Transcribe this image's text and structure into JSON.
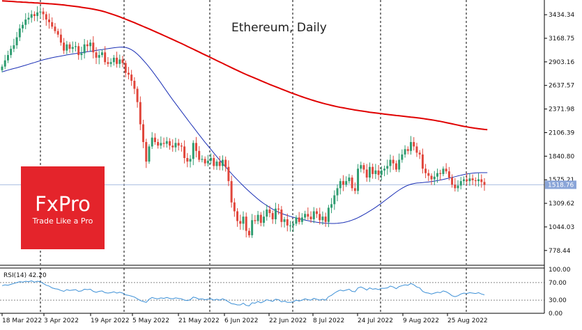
{
  "title": "Ethereum, Daily",
  "brand": {
    "name": "FxPro",
    "tagline": "Trade Like a Pro",
    "color": "#e4242b"
  },
  "colors": {
    "bull": "#2e9c70",
    "bear": "#e0453a",
    "ma_slow": "#e00000",
    "ma_fast": "#1a2fb5",
    "rsi": "#3b8fd6",
    "grid": "#000000",
    "price_line": "#a8bde0",
    "price_tag": "#8aa5d8"
  },
  "chart_data": [
    {
      "type": "candlestick",
      "title": "Ethereum, Daily",
      "y_ticks": [
        "3434.34",
        "3168.75",
        "2903.16",
        "2637.57",
        "2371.98",
        "2106.39",
        "1840.80",
        "1575.21",
        "1309.62",
        "1044.03",
        "778.44"
      ],
      "x_ticks": [
        "18 Mar 2022",
        "3 Apr 2022",
        "19 Apr 2022",
        "5 May 2022",
        "21 May 2022",
        "6 Jun 2022",
        "22 Jun 2022",
        "8 Jul 2022",
        "24 Jul 2022",
        "9 Aug 2022",
        "25 Aug 2022"
      ],
      "ylim": [
        620,
        3600
      ],
      "current_price": "1518.76",
      "current_value": 1518.76,
      "closes": [
        2850,
        2920,
        2980,
        3050,
        3090,
        3180,
        3280,
        3320,
        3380,
        3400,
        3440,
        3420,
        3460,
        3470,
        3440,
        3380,
        3350,
        3300,
        3250,
        3210,
        3120,
        3030,
        3100,
        3050,
        3070,
        3080,
        2980,
        3000,
        3100,
        3080,
        3120,
        3010,
        2950,
        2980,
        3010,
        2900,
        2880,
        2900,
        2950,
        2880,
        2930,
        2890,
        2780,
        2760,
        2690,
        2600,
        2450,
        2200,
        2000,
        1780,
        1950,
        2050,
        2000,
        1960,
        1990,
        1980,
        2010,
        1960,
        1940,
        1990,
        1960,
        1950,
        1820,
        1780,
        1810,
        1990,
        1900,
        1800,
        1810,
        1760,
        1790,
        1820,
        1730,
        1780,
        1730,
        1800,
        1720,
        1560,
        1320,
        1220,
        1110,
        1080,
        1160,
        1000,
        950,
        1120,
        1110,
        1180,
        1090,
        1160,
        1240,
        1200,
        1130,
        1250,
        1240,
        1100,
        1130,
        1060,
        1060,
        1080,
        1150,
        1100,
        1150,
        1190,
        1160,
        1130,
        1220,
        1190,
        1120,
        1160,
        1100,
        1260,
        1300,
        1400,
        1480,
        1560,
        1520,
        1560,
        1600,
        1480,
        1450,
        1700,
        1740,
        1690,
        1600,
        1720,
        1640,
        1680,
        1630,
        1680,
        1700,
        1730,
        1800,
        1760,
        1690,
        1800,
        1860,
        1920,
        1900,
        2000,
        1950,
        1880,
        1860,
        1700,
        1650,
        1620,
        1580,
        1610,
        1650,
        1640,
        1700,
        1670,
        1600,
        1520,
        1480,
        1510,
        1560,
        1580,
        1560,
        1590,
        1570,
        1560,
        1580,
        1550,
        1518
      ],
      "ma_slow": [
        3590,
        3588,
        3586,
        3584,
        3582,
        3580,
        3578,
        3576,
        3574,
        3572,
        3570,
        3568,
        3566,
        3564,
        3562,
        3560,
        3558,
        3556,
        3553,
        3550,
        3547,
        3544,
        3540,
        3536,
        3532,
        3528,
        3523,
        3518,
        3513,
        3508,
        3503,
        3497,
        3490,
        3483,
        3475,
        3466,
        3456,
        3445,
        3434,
        3422,
        3410,
        3397,
        3384,
        3371,
        3358,
        3344,
        3330,
        3316,
        3302,
        3288,
        3274,
        3260,
        3245,
        3230,
        3215,
        3200,
        3185,
        3170,
        3155,
        3140,
        3125,
        3110,
        3094,
        3078,
        3062,
        3046,
        3030,
        3014,
        2998,
        2982,
        2966,
        2950,
        2934,
        2918,
        2902,
        2886,
        2870,
        2854,
        2838,
        2822,
        2806,
        2791,
        2776,
        2761,
        2747,
        2733,
        2719,
        2705,
        2691,
        2677,
        2663,
        2649,
        2636,
        2623,
        2610,
        2597,
        2584,
        2571,
        2558,
        2546,
        2534,
        2522,
        2510,
        2499,
        2488,
        2477,
        2467,
        2457,
        2447,
        2438,
        2429,
        2421,
        2413,
        2405,
        2398,
        2391,
        2385,
        2379,
        2373,
        2367,
        2361,
        2356,
        2351,
        2346,
        2341,
        2336,
        2331,
        2327,
        2323,
        2319,
        2315,
        2311,
        2307,
        2303,
        2299,
        2296,
        2292,
        2289,
        2285,
        2281,
        2278,
        2274,
        2270,
        2265,
        2260,
        2255,
        2250,
        2245,
        2239,
        2233,
        2226,
        2219,
        2212,
        2205,
        2198,
        2191,
        2184,
        2177,
        2171,
        2165,
        2160,
        2155,
        2150,
        2146,
        2142,
        2139
      ],
      "ma_fast": [
        2790,
        2800,
        2810,
        2820,
        2828,
        2836,
        2846,
        2856,
        2866,
        2876,
        2886,
        2896,
        2906,
        2916,
        2926,
        2934,
        2942,
        2950,
        2957,
        2963,
        2969,
        2975,
        2981,
        2987,
        2992,
        2997,
        3002,
        3007,
        3012,
        3017,
        3022,
        3027,
        3032,
        3037,
        3042,
        3047,
        3052,
        3057,
        3062,
        3066,
        3069,
        3070,
        3066,
        3056,
        3040,
        3018,
        2990,
        2958,
        2922,
        2884,
        2844,
        2802,
        2758,
        2712,
        2665,
        2617,
        2570,
        2523,
        2477,
        2432,
        2388,
        2344,
        2300,
        2256,
        2212,
        2168,
        2125,
        2082,
        2040,
        1998,
        1957,
        1916,
        1876,
        1836,
        1797,
        1758,
        1720,
        1682,
        1645,
        1609,
        1574,
        1540,
        1507,
        1475,
        1444,
        1414,
        1385,
        1357,
        1331,
        1307,
        1285,
        1264,
        1244,
        1226,
        1210,
        1196,
        1184,
        1173,
        1163,
        1153,
        1144,
        1136,
        1128,
        1121,
        1114,
        1108,
        1102,
        1097,
        1093,
        1089,
        1086,
        1084,
        1083,
        1083,
        1085,
        1088,
        1093,
        1100,
        1109,
        1120,
        1133,
        1148,
        1165,
        1183,
        1202,
        1222,
        1243,
        1265,
        1288,
        1312,
        1337,
        1362,
        1387,
        1412,
        1436,
        1459,
        1480,
        1498,
        1513,
        1525,
        1533,
        1538,
        1541,
        1544,
        1547,
        1550,
        1555,
        1560,
        1566,
        1572,
        1579,
        1586,
        1594,
        1602,
        1610,
        1618,
        1626,
        1633,
        1640,
        1645,
        1649,
        1652,
        1654,
        1655,
        1655,
        1655
      ]
    },
    {
      "type": "line",
      "title": "RSI(14) 42.20",
      "y_ticks": [
        "100.00",
        "70.00",
        "30.00",
        "0.00"
      ],
      "ylim": [
        0,
        100
      ],
      "levels": [
        70,
        30
      ],
      "series": [
        {
          "values": [
            63,
            65,
            64,
            66,
            68,
            70,
            72,
            71,
            73,
            72,
            74,
            71,
            73,
            72,
            68,
            64,
            62,
            58,
            56,
            55,
            52,
            50,
            54,
            52,
            53,
            54,
            50,
            51,
            55,
            54,
            55,
            50,
            48,
            50,
            51,
            47,
            46,
            47,
            49,
            46,
            48,
            46,
            42,
            41,
            39,
            37,
            33,
            29,
            27,
            25,
            32,
            36,
            34,
            33,
            35,
            34,
            36,
            34,
            33,
            35,
            34,
            33,
            30,
            29,
            31,
            37,
            35,
            32,
            33,
            31,
            32,
            33,
            30,
            32,
            30,
            33,
            30,
            26,
            22,
            21,
            19,
            19,
            23,
            18,
            17,
            24,
            23,
            27,
            24,
            27,
            31,
            29,
            27,
            32,
            31,
            26,
            28,
            25,
            25,
            26,
            30,
            28,
            30,
            33,
            31,
            30,
            34,
            32,
            30,
            32,
            30,
            38,
            41,
            46,
            50,
            53,
            51,
            53,
            55,
            50,
            49,
            58,
            60,
            57,
            53,
            58,
            55,
            56,
            54,
            57,
            57,
            58,
            62,
            60,
            56,
            61,
            63,
            65,
            64,
            68,
            65,
            60,
            58,
            50,
            47,
            46,
            44,
            46,
            48,
            47,
            51,
            49,
            45,
            40,
            38,
            40,
            44,
            46,
            45,
            47,
            46,
            45,
            47,
            44,
            42
          ]
        }
      ]
    }
  ]
}
